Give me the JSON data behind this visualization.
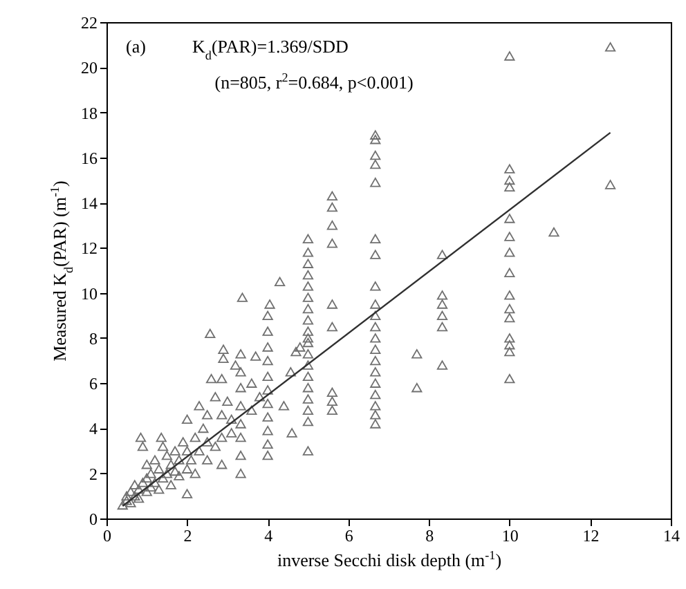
{
  "chart_data": {
    "type": "scatter",
    "xlabel": "inverse Secchi disk depth (m$^{-1}$)",
    "ylabel": "Measured K$_{d}$(PAR) (m$^{-1}$)",
    "annotations": [
      "(a)",
      "K$_{d}$(PAR)=1.369/SDD",
      "(n=805, r$^{2}$=0.684, p<0.001)"
    ],
    "xlim": [
      0,
      14
    ],
    "xticks": [
      0,
      2,
      4,
      6,
      8,
      10,
      12,
      14
    ],
    "ylim": [
      0,
      22
    ],
    "yticks": [
      0,
      2,
      4,
      6,
      8,
      10,
      12,
      14,
      16,
      18,
      20,
      22
    ],
    "grid": false,
    "series": [
      {
        "type": "scatter",
        "marker": "triangle",
        "color": "#707070",
        "x": [
          0.4,
          0.5,
          0.5,
          0.6,
          0.6,
          0.7,
          0.7,
          0.8,
          0.8,
          0.85,
          0.9,
          0.9,
          1.0,
          1.0,
          1.0,
          1.1,
          1.1,
          1.2,
          1.2,
          1.3,
          1.3,
          1.36,
          1.4,
          1.4,
          1.5,
          1.5,
          1.6,
          1.6,
          1.7,
          1.7,
          1.8,
          1.8,
          1.9,
          2.0,
          2.0,
          2.0,
          2.0,
          2.1,
          2.2,
          2.2,
          2.3,
          2.3,
          2.4,
          2.5,
          2.5,
          2.5,
          2.57,
          2.6,
          2.7,
          2.7,
          2.86,
          2.86,
          2.86,
          2.86,
          2.9,
          2.9,
          3.0,
          3.1,
          3.1,
          3.2,
          3.33,
          3.33,
          3.33,
          3.33,
          3.33,
          3.33,
          3.33,
          3.33,
          3.37,
          3.6,
          3.6,
          3.7,
          3.8,
          4.0,
          4.0,
          4.0,
          4.0,
          4.0,
          4.0,
          4.0,
          4.0,
          4.0,
          4.0,
          4.0,
          4.05,
          4.3,
          4.4,
          4.57,
          4.6,
          4.7,
          4.8,
          5.0,
          5.0,
          5.0,
          5.0,
          5.0,
          5.0,
          5.0,
          5.0,
          5.0,
          5.0,
          5.0,
          5.0,
          5.0,
          5.0,
          5.0,
          5.0,
          5.0,
          5.0,
          5.0,
          5.6,
          5.6,
          5.6,
          5.6,
          5.6,
          5.6,
          5.6,
          5.6,
          5.6,
          6.67,
          6.67,
          6.67,
          6.67,
          6.67,
          6.67,
          6.67,
          6.67,
          6.67,
          6.67,
          6.67,
          6.67,
          6.67,
          6.67,
          6.67,
          6.67,
          6.67,
          6.67,
          6.67,
          6.67,
          7.7,
          7.7,
          8.33,
          8.33,
          8.33,
          8.33,
          8.33,
          8.33,
          10.0,
          10.0,
          10.0,
          10.0,
          10.0,
          10.0,
          10.0,
          10.0,
          10.0,
          10.0,
          10.0,
          10.0,
          10.0,
          10.0,
          10.0,
          11.1,
          12.5,
          12.5
        ],
        "values": [
          0.6,
          0.8,
          1.0,
          0.7,
          1.2,
          1.0,
          1.5,
          0.9,
          1.3,
          3.6,
          3.2,
          1.6,
          1.2,
          1.8,
          2.4,
          1.4,
          2.0,
          1.6,
          2.6,
          1.3,
          2.2,
          3.6,
          3.2,
          1.8,
          2.0,
          2.8,
          1.5,
          2.4,
          3.0,
          2.1,
          2.6,
          1.9,
          3.4,
          1.1,
          2.2,
          3.0,
          4.4,
          2.6,
          3.6,
          2.0,
          5.0,
          3.0,
          4.0,
          2.6,
          3.4,
          4.6,
          8.2,
          6.2,
          3.2,
          5.4,
          2.4,
          3.6,
          4.6,
          6.2,
          7.5,
          7.1,
          5.2,
          3.8,
          4.4,
          6.8,
          2.0,
          2.8,
          3.6,
          4.2,
          5.0,
          5.8,
          6.5,
          7.3,
          9.8,
          4.8,
          6.0,
          7.2,
          5.4,
          2.8,
          3.3,
          3.9,
          4.5,
          5.1,
          5.7,
          6.3,
          7.0,
          7.6,
          8.3,
          9.0,
          9.5,
          10.5,
          5.0,
          6.5,
          3.8,
          7.4,
          7.6,
          8.0,
          3.0,
          4.3,
          4.8,
          5.3,
          5.8,
          6.3,
          6.8,
          7.3,
          7.8,
          8.3,
          8.8,
          9.3,
          9.8,
          10.3,
          10.8,
          11.3,
          11.8,
          12.4,
          13.0,
          4.8,
          5.2,
          5.6,
          8.5,
          9.5,
          12.2,
          13.8,
          14.3,
          15.7,
          4.2,
          4.6,
          5.0,
          5.5,
          6.0,
          6.5,
          7.0,
          7.5,
          8.0,
          8.5,
          9.0,
          9.5,
          10.3,
          11.7,
          12.4,
          14.9,
          16.1,
          16.8,
          17.0,
          5.8,
          7.3,
          6.8,
          8.5,
          9.0,
          9.5,
          9.9,
          11.7,
          6.2,
          7.4,
          7.7,
          8.0,
          8.9,
          9.3,
          9.9,
          10.9,
          11.8,
          12.5,
          13.3,
          14.7,
          15.0,
          15.5,
          20.5,
          12.7,
          14.8,
          20.9
        ]
      },
      {
        "type": "line",
        "line_style": "solid",
        "color": "#303030",
        "x": [
          0.4,
          12.5
        ],
        "values": [
          0.55,
          17.1
        ]
      }
    ]
  }
}
